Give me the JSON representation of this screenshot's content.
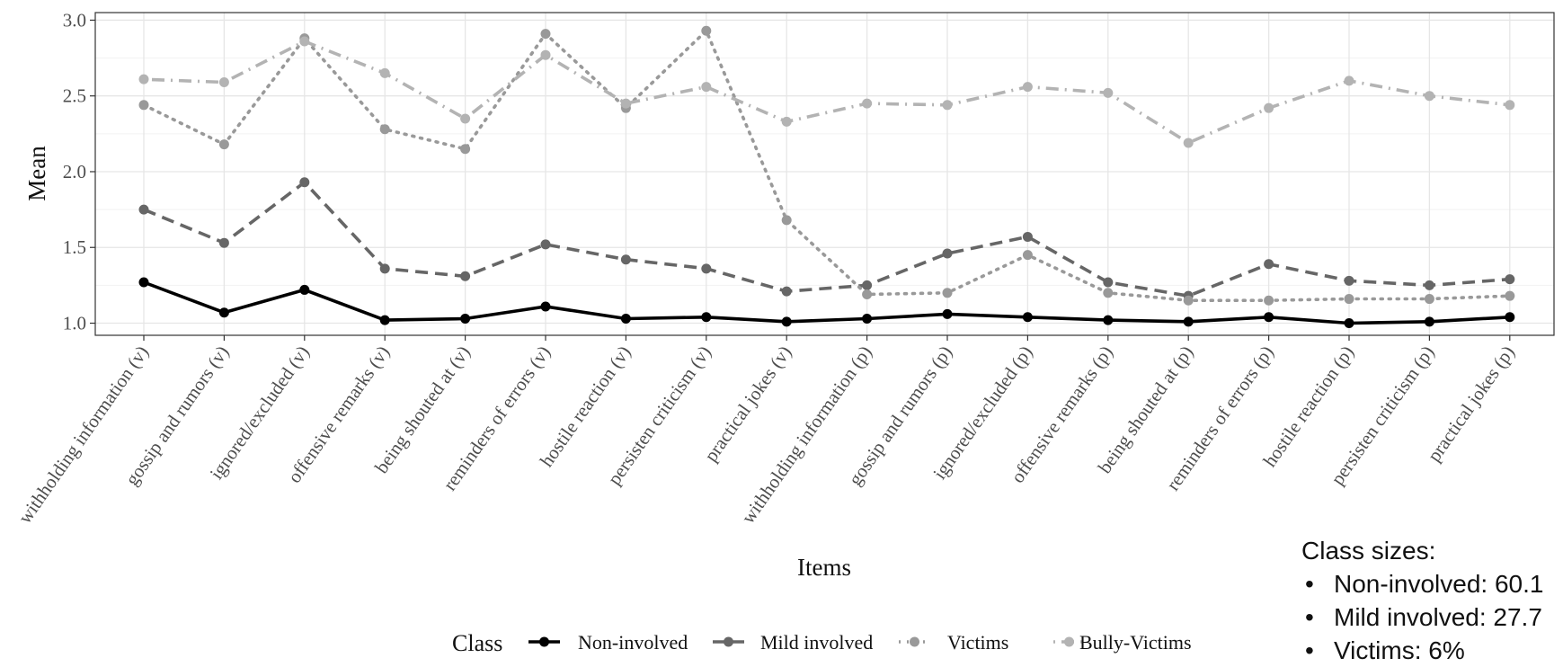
{
  "chart_data": {
    "type": "line",
    "xlabel": "Items",
    "ylabel": "Mean",
    "ylim": [
      0.92,
      3.05
    ],
    "yticks": [
      "1.0",
      "1.5",
      "2.0",
      "2.5",
      "3.0"
    ],
    "grid": true,
    "legend_position": "bottom",
    "legend_title": "Class",
    "categories": [
      "withholding information (v)",
      "gossip and rumors (v)",
      "ignored/excluded (v)",
      "offensive remarks (v)",
      "being shouted at (v)",
      "reminders of errors (v)",
      "hostile reaction (v)",
      "persisten criticism (v)",
      "practical jokes (v)",
      "withholding information (p)",
      "gossip and rumors (p)",
      "ignored/excluded (p)",
      "offensive remarks (p)",
      "being shouted at (p)",
      "reminders of errors (p)",
      "hostile reaction (p)",
      "persisten criticism (p)",
      "practical jokes (p)"
    ],
    "series": [
      {
        "name": "Non-involved",
        "color": "#000000",
        "dash": "solid",
        "values": [
          1.27,
          1.07,
          1.22,
          1.02,
          1.03,
          1.11,
          1.03,
          1.04,
          1.01,
          1.03,
          1.06,
          1.04,
          1.02,
          1.01,
          1.04,
          1.0,
          1.01,
          1.04
        ]
      },
      {
        "name": "Mild involved",
        "color": "#666666",
        "dash": "dashed",
        "values": [
          1.75,
          1.53,
          1.93,
          1.36,
          1.31,
          1.52,
          1.42,
          1.36,
          1.21,
          1.25,
          1.46,
          1.57,
          1.27,
          1.18,
          1.39,
          1.28,
          1.25,
          1.29
        ]
      },
      {
        "name": "Victims",
        "color": "#999999",
        "dash": "dotted",
        "values": [
          2.44,
          2.18,
          2.88,
          2.28,
          2.15,
          2.91,
          2.42,
          2.93,
          1.68,
          1.19,
          1.2,
          1.45,
          1.2,
          1.15,
          1.15,
          1.16,
          1.16,
          1.18
        ]
      },
      {
        "name": "Bully-Victims",
        "color": "#b3b3b3",
        "dash": "dotdash",
        "values": [
          2.61,
          2.59,
          2.86,
          2.65,
          2.35,
          2.77,
          2.45,
          2.56,
          2.33,
          2.45,
          2.44,
          2.56,
          2.52,
          2.19,
          2.42,
          2.6,
          2.5,
          2.44
        ]
      }
    ]
  },
  "class_sizes": {
    "title": "Class sizes:",
    "items": [
      "Non-involved: 60.1",
      "Mild involved: 27.7",
      "Victims: 6%"
    ]
  }
}
